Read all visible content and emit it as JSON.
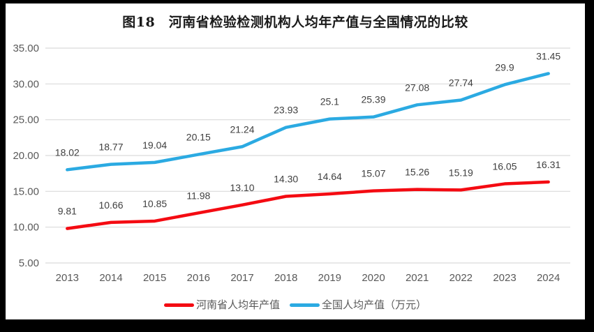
{
  "title": "图18　河南省检验检测机构人均年产值与全国情况的比较",
  "chart_data": {
    "type": "line",
    "categories": [
      "2013",
      "2014",
      "2015",
      "2016",
      "2017",
      "2018",
      "2019",
      "2020",
      "2021",
      "2022",
      "2023",
      "2024"
    ],
    "series": [
      {
        "name": "河南省人均年产值",
        "color": "#F40B12",
        "values": [
          9.81,
          10.66,
          10.85,
          11.98,
          13.1,
          14.3,
          14.64,
          15.07,
          15.26,
          15.19,
          16.05,
          16.31
        ],
        "labels": [
          "9.81",
          "10.66",
          "10.85",
          "11.98",
          "13.10",
          "14.30",
          "14.64",
          "15.07",
          "15.26",
          "15.19",
          "16.05",
          "16.31"
        ]
      },
      {
        "name": "全国人均产值（万元）",
        "color": "#2BAAE2",
        "values": [
          18.02,
          18.77,
          19.04,
          20.15,
          21.24,
          23.93,
          25.1,
          25.39,
          27.08,
          27.74,
          29.9,
          31.45
        ],
        "labels": [
          "18.02",
          "18.77",
          "19.04",
          "20.15",
          "21.24",
          "23.93",
          "25.1",
          "25.39",
          "27.08",
          "27.74",
          "29.9",
          "31.45"
        ]
      }
    ],
    "ylim": [
      5,
      35
    ],
    "ytick_step": 5,
    "ytick_labels": [
      "5.00",
      "10.00",
      "15.00",
      "20.00",
      "25.00",
      "30.00",
      "35.00"
    ],
    "grid": "horizontal-only",
    "legend_position": "bottom",
    "styles": {
      "grid_color": "#D9D9D9",
      "tick_label_color": "#595959",
      "data_label_color": "#3F3F3F",
      "background": "#FFFFFF",
      "frame": "#000000"
    }
  }
}
